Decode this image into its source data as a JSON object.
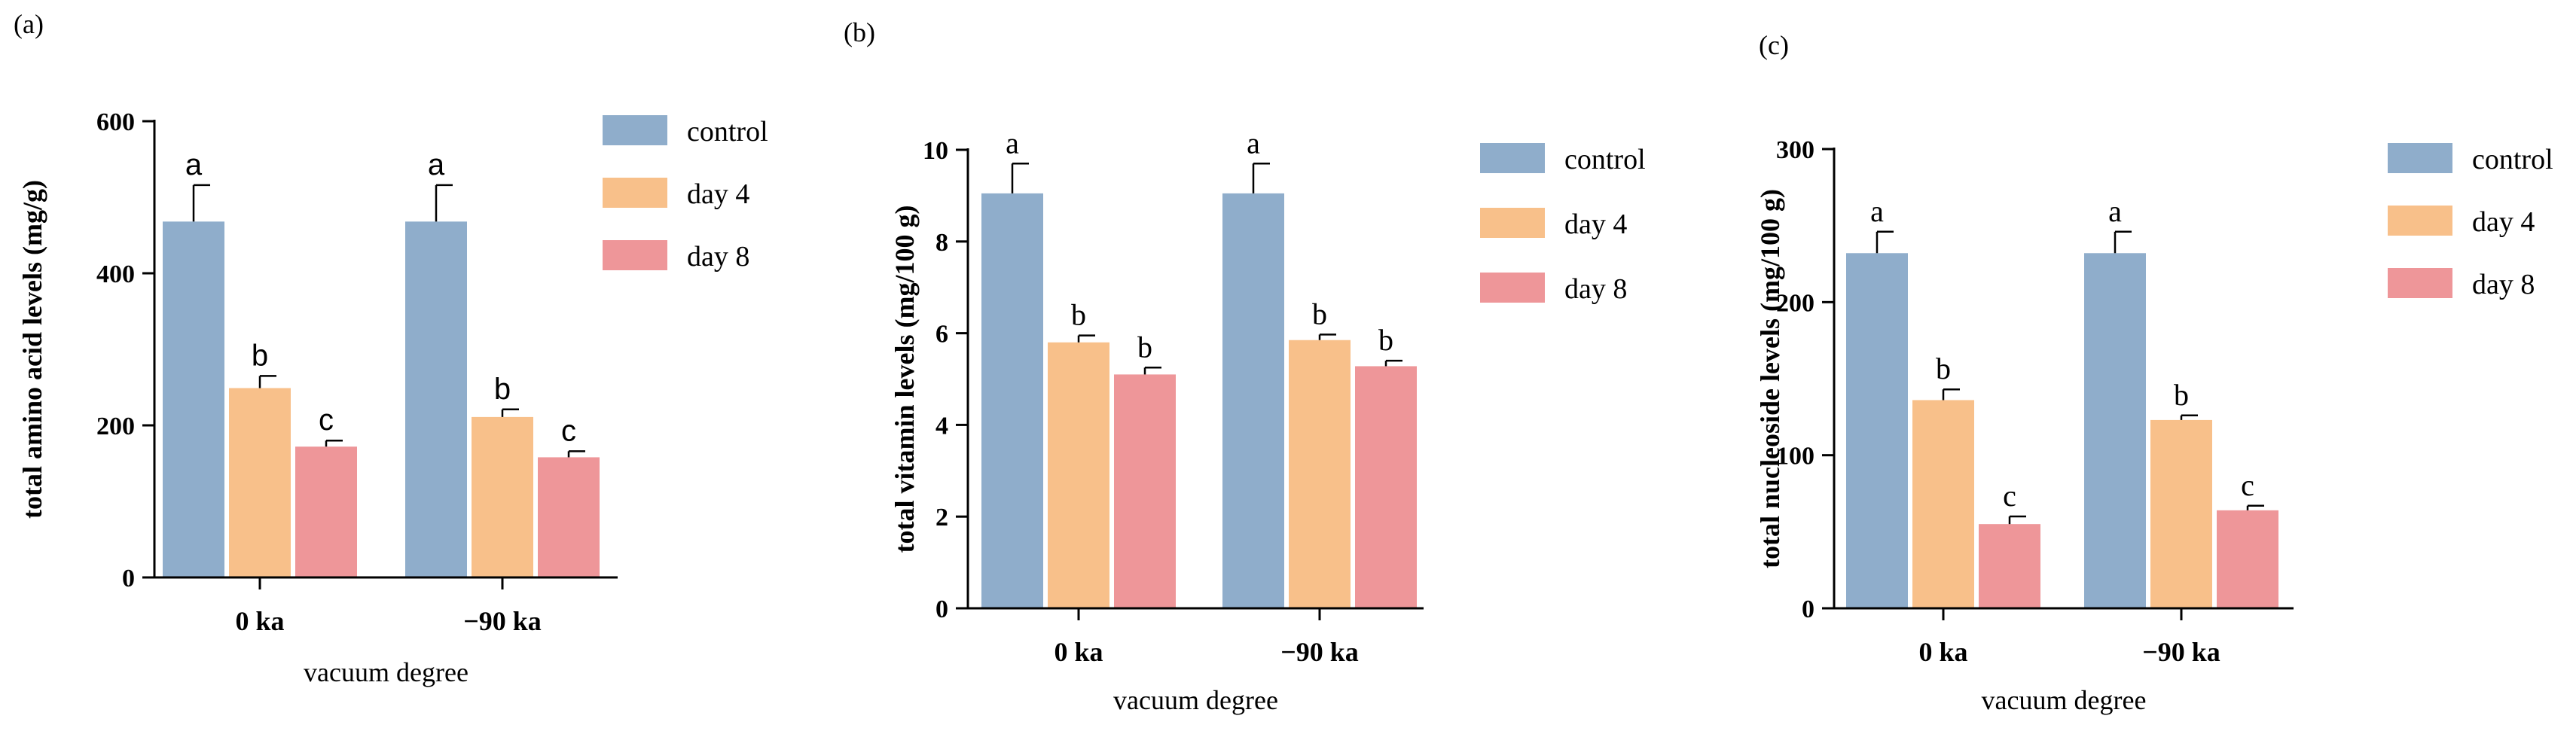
{
  "chart_data": [
    {
      "type": "bar",
      "panel_label": "(a)",
      "ylabel": "total amino acid levels (mg/g)",
      "xlabel": "vacuum degree",
      "categories": [
        "0 ka",
        "−90 ka"
      ],
      "ylim": [
        0,
        600
      ],
      "yticks": [
        "0",
        "200",
        "400",
        "600"
      ],
      "ytick_values": [
        0,
        200,
        400,
        600
      ],
      "series": [
        {
          "name": "control",
          "color": "#8fadcb",
          "values": [
            468,
            468
          ],
          "errors": [
            48,
            48
          ],
          "labels": [
            "a",
            "a"
          ]
        },
        {
          "name": "day 4",
          "color": "#f8c08a",
          "values": [
            249,
            211
          ],
          "errors": [
            16,
            10
          ],
          "labels": [
            "b",
            "b"
          ]
        },
        {
          "name": "day 8",
          "color": "#ee9699",
          "values": [
            172,
            158
          ],
          "errors": [
            8,
            8
          ],
          "labels": [
            "c",
            "c"
          ]
        }
      ],
      "legend_position": "right",
      "sig_font": "sans"
    },
    {
      "type": "bar",
      "panel_label": "(b)",
      "ylabel": "total vitamin levels (mg/100 g)",
      "xlabel": "vacuum degree",
      "categories": [
        "0 ka",
        "−90 ka"
      ],
      "ylim": [
        0,
        10
      ],
      "yticks": [
        "0",
        "2",
        "4",
        "6",
        "8",
        "10"
      ],
      "ytick_values": [
        0,
        2,
        4,
        6,
        8,
        10
      ],
      "series": [
        {
          "name": "control",
          "color": "#8fadcb",
          "values": [
            9.05,
            9.05
          ],
          "errors": [
            0.65,
            0.65
          ],
          "labels": [
            "a",
            "a"
          ]
        },
        {
          "name": "day 4",
          "color": "#f8c08a",
          "values": [
            5.8,
            5.85
          ],
          "errors": [
            0.15,
            0.12
          ],
          "labels": [
            "b",
            "b"
          ]
        },
        {
          "name": "day 8",
          "color": "#ee9699",
          "values": [
            5.1,
            5.28
          ],
          "errors": [
            0.15,
            0.12
          ],
          "labels": [
            "b",
            "b"
          ]
        }
      ],
      "legend_position": "right",
      "sig_font": "serif"
    },
    {
      "type": "bar",
      "panel_label": "(c)",
      "ylabel": "total nucleoside levels (mg/100 g)",
      "xlabel": "vacuum degree",
      "categories": [
        "0 ka",
        "−90 ka"
      ],
      "ylim": [
        0,
        300
      ],
      "yticks": [
        "0",
        "100",
        "200",
        "300"
      ],
      "ytick_values": [
        0,
        100,
        200,
        300
      ],
      "series": [
        {
          "name": "control",
          "color": "#8fadcb",
          "values": [
            232,
            232
          ],
          "errors": [
            14,
            14
          ],
          "labels": [
            "a",
            "a"
          ]
        },
        {
          "name": "day 4",
          "color": "#f8c08a",
          "values": [
            136,
            123
          ],
          "errors": [
            7,
            3
          ],
          "labels": [
            "b",
            "b"
          ]
        },
        {
          "name": "day 8",
          "color": "#ee9699",
          "values": [
            55,
            64
          ],
          "errors": [
            5,
            3
          ],
          "labels": [
            "c",
            "c"
          ]
        }
      ],
      "legend_position": "right",
      "sig_font": "serif"
    }
  ]
}
